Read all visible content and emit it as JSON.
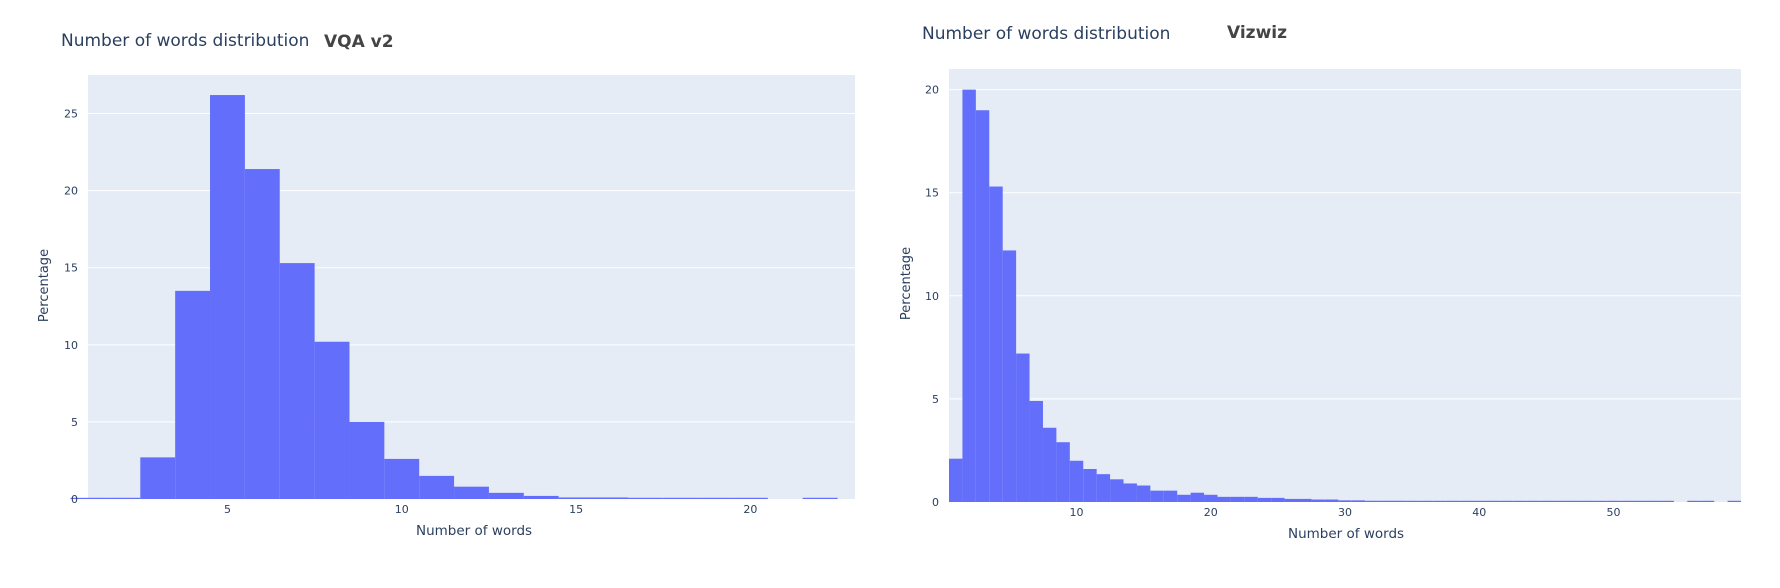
{
  "charts": [
    {
      "title": "Number of words distribution",
      "subtitle": "VQA v2",
      "xlabel": "Number of words",
      "ylabel": "Percentage",
      "colors": {
        "bar": "#636efa",
        "plot_bg": "#e5ecf6",
        "grid": "#ffffff"
      }
    },
    {
      "title": "Number of words distribution",
      "subtitle": "Vizwiz",
      "xlabel": "Number of words",
      "ylabel": "Percentage",
      "colors": {
        "bar": "#636efa",
        "plot_bg": "#e5ecf6",
        "grid": "#ffffff"
      }
    }
  ],
  "chart_data": [
    {
      "type": "bar",
      "title": "Number of words distribution",
      "subtitle": "VQA v2",
      "xlabel": "Number of words",
      "ylabel": "Percentage",
      "x": [
        1,
        2,
        3,
        4,
        5,
        6,
        7,
        8,
        9,
        10,
        11,
        12,
        13,
        14,
        15,
        16,
        17,
        18,
        19,
        20,
        21,
        22
      ],
      "values": [
        0.05,
        0.05,
        2.7,
        13.5,
        26.2,
        21.4,
        15.3,
        10.2,
        5.0,
        2.6,
        1.5,
        0.8,
        0.4,
        0.2,
        0.1,
        0.1,
        0.04,
        0.03,
        0.02,
        0.02,
        0,
        0.04
      ],
      "xlim": [
        1,
        23
      ],
      "ylim": [
        0,
        27.5
      ],
      "xticks": [
        5,
        10,
        15,
        20
      ],
      "yticks": [
        0,
        5,
        10,
        15,
        20,
        25
      ],
      "grid": true
    },
    {
      "type": "bar",
      "title": "Number of words distribution",
      "subtitle": "Vizwiz",
      "xlabel": "Number of words",
      "ylabel": "Percentage",
      "x": [
        1,
        2,
        3,
        4,
        5,
        6,
        7,
        8,
        9,
        10,
        11,
        12,
        13,
        14,
        15,
        16,
        17,
        18,
        19,
        20,
        21,
        22,
        23,
        24,
        25,
        26,
        27,
        28,
        29,
        30,
        31,
        32,
        33,
        34,
        35,
        36,
        37,
        38,
        39,
        40,
        41,
        42,
        43,
        44,
        45,
        46,
        47,
        48,
        49,
        50,
        51,
        52,
        53,
        54,
        55,
        56,
        57,
        58,
        59
      ],
      "values": [
        2.1,
        20.0,
        19.0,
        15.3,
        12.2,
        7.2,
        4.9,
        3.6,
        2.9,
        2.0,
        1.6,
        1.35,
        1.1,
        0.9,
        0.8,
        0.55,
        0.55,
        0.35,
        0.45,
        0.35,
        0.25,
        0.25,
        0.25,
        0.2,
        0.2,
        0.15,
        0.15,
        0.12,
        0.12,
        0.08,
        0.08,
        0.06,
        0.06,
        0.06,
        0.05,
        0.05,
        0.04,
        0.03,
        0.03,
        0.03,
        0.03,
        0.03,
        0.03,
        0.03,
        0.03,
        0.03,
        0.03,
        0.03,
        0.03,
        0.03,
        0.03,
        0.03,
        0.03,
        0.03,
        0,
        0.03,
        0.03,
        0,
        0.03
      ],
      "xlim": [
        0.5,
        59.5
      ],
      "ylim": [
        0,
        21
      ],
      "xticks": [
        10,
        20,
        30,
        40,
        50
      ],
      "yticks": [
        0,
        5,
        10,
        15,
        20
      ],
      "grid": true
    }
  ]
}
